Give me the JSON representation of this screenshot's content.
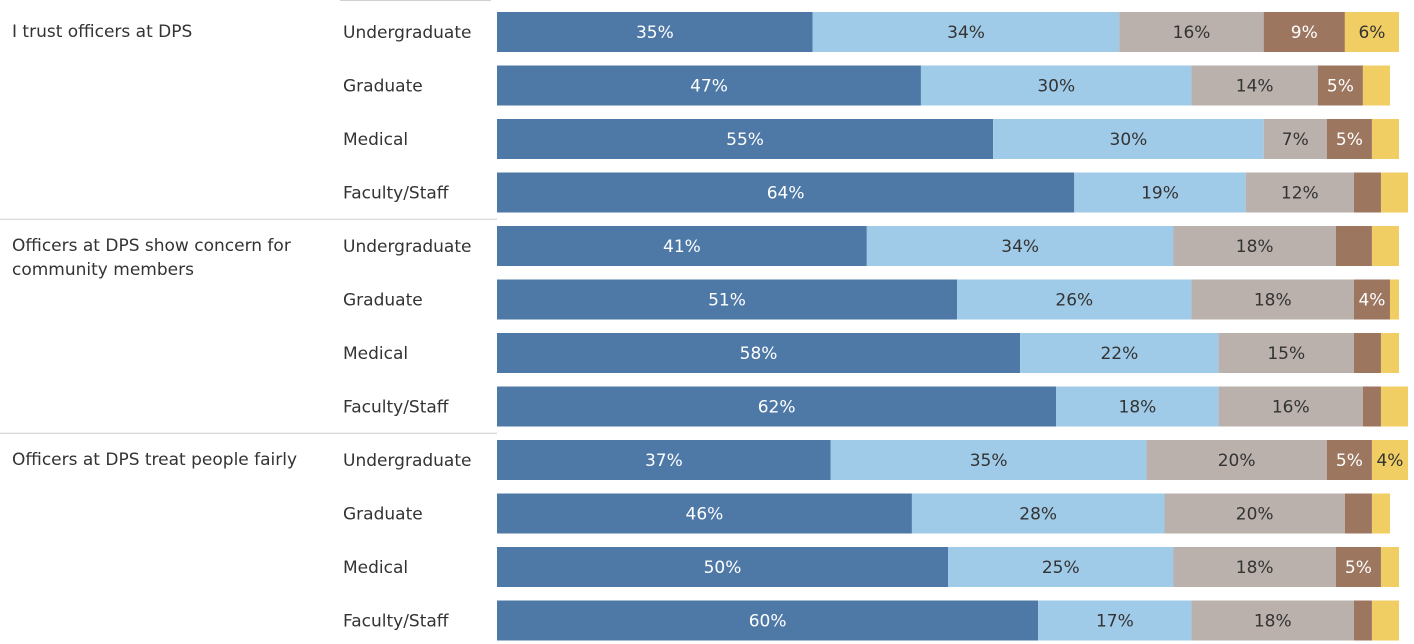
{
  "chart_data": {
    "type": "stacked-bar-horizontal",
    "groups": [
      "I trust officers at DPS",
      "Officers at DPS show concern for community members",
      "Officers at DPS treat people fairly"
    ],
    "categories": [
      "Undergraduate",
      "Graduate",
      "Medical",
      "Faculty/Staff",
      "Undergraduate",
      "Graduate",
      "Medical",
      "Faculty/Staff",
      "Undergraduate",
      "Graduate",
      "Medical",
      "Faculty/Staff"
    ],
    "xlim": [
      0,
      100
    ],
    "series": [
      {
        "color": "#4e79a7",
        "label_color": "#ffffff",
        "values": [
          35,
          47,
          55,
          64,
          41,
          51,
          58,
          62,
          37,
          46,
          50,
          60
        ],
        "value_labels": [
          "35%",
          "47%",
          "55%",
          "64%",
          "41%",
          "51%",
          "58%",
          "62%",
          "37%",
          "46%",
          "50%",
          "60%"
        ]
      },
      {
        "color": "#a0cbe8",
        "label_color": "#333333",
        "values": [
          34,
          30,
          30,
          19,
          34,
          26,
          22,
          18,
          35,
          28,
          25,
          17
        ],
        "value_labels": [
          "34%",
          "30%",
          "30%",
          "19%",
          "34%",
          "26%",
          "22%",
          "18%",
          "35%",
          "28%",
          "25%",
          "17%"
        ]
      },
      {
        "color": "#bab0ac",
        "label_color": "#333333",
        "values": [
          16,
          14,
          7,
          12,
          18,
          18,
          15,
          16,
          20,
          20,
          18,
          18
        ],
        "value_labels": [
          "16%",
          "14%",
          "7%",
          "12%",
          "18%",
          "18%",
          "15%",
          "16%",
          "20%",
          "20%",
          "18%",
          "18%"
        ]
      },
      {
        "color": "#9d7660",
        "label_color": "#ffffff",
        "values": [
          9,
          5,
          5,
          3,
          4,
          4,
          3,
          2,
          5,
          3,
          5,
          2
        ],
        "value_labels": [
          "9%",
          "5%",
          "5%",
          null,
          null,
          "4%",
          null,
          null,
          "5%",
          null,
          "5%",
          null
        ]
      },
      {
        "color": "#f1ce63",
        "label_color": "#333333",
        "values": [
          6,
          3,
          3,
          3,
          3,
          1,
          2,
          3,
          4,
          2,
          2,
          3
        ],
        "value_labels": [
          "6%",
          null,
          null,
          null,
          null,
          null,
          null,
          null,
          "4%",
          null,
          null,
          null
        ]
      }
    ]
  }
}
